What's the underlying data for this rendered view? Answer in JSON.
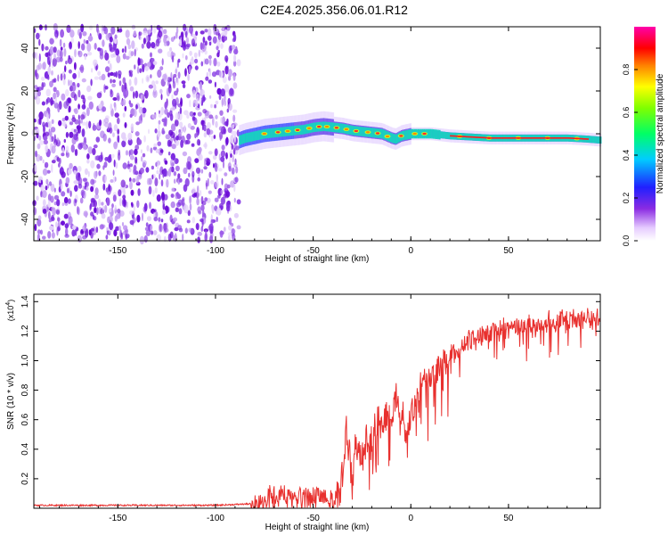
{
  "title": "C2E4.2025.356.06.01.R12",
  "spectrogram": {
    "type": "heatmap",
    "xlabel": "Height of straight line (km)",
    "ylabel": "Frequency (Hz)",
    "xlim": [
      -193,
      97
    ],
    "ylim": [
      -50,
      50
    ],
    "xticks": [
      -150,
      -100,
      -50,
      0,
      50
    ],
    "yticks": [
      -40,
      -20,
      0,
      20,
      40
    ],
    "noise_region_km": [
      -193,
      -88
    ],
    "ridge": {
      "x": [
        -88,
        -85,
        -80,
        -75,
        -70,
        -65,
        -60,
        -55,
        -50,
        -45,
        -40,
        -35,
        -30,
        -25,
        -20,
        -15,
        -10,
        -8,
        -5,
        0,
        5,
        10,
        20,
        30,
        40,
        50,
        60,
        70,
        80,
        90,
        97
      ],
      "y": [
        -3,
        -2,
        -1,
        0,
        0.5,
        1,
        1.5,
        2,
        3,
        3.5,
        3,
        2.5,
        1.5,
        1,
        0.5,
        0,
        -2,
        -2.5,
        -1,
        0,
        0,
        0,
        -1,
        -1.5,
        -2,
        -2,
        -2,
        -2,
        -2,
        -2.5,
        -3
      ]
    }
  },
  "colorbar": {
    "label": "Normalized spectral amplitude",
    "ticks": [
      "0.0",
      "0.2",
      "0.4",
      "0.6",
      "0.8"
    ],
    "range": [
      0,
      1
    ]
  },
  "chart_data": [
    {
      "type": "heatmap",
      "title": "C2E4.2025.356.06.01.R12",
      "xlabel": "Height of straight line (km)",
      "ylabel": "Frequency (Hz)",
      "xlim": [
        -193,
        97
      ],
      "ylim": [
        -50,
        50
      ],
      "colorbar_label": "Normalized spectral amplitude",
      "colorbar_range": [
        0,
        1
      ]
    },
    {
      "type": "line",
      "xlabel": "Height of straight line (km)",
      "ylabel": "SNR (10 * v/v)",
      "multiplier": "(x10^4)",
      "xlim": [
        -193,
        97
      ],
      "ylim": [
        0,
        1.45
      ],
      "color": "#e02020",
      "series": [
        {
          "name": "SNR",
          "x": [
            -193,
            -150,
            -100,
            -82,
            -80,
            -76,
            -70,
            -65,
            -60,
            -55,
            -50,
            -45,
            -40,
            -36,
            -33,
            -30,
            -28,
            -25,
            -22,
            -20,
            -18,
            -15,
            -12,
            -10,
            -8,
            -5,
            -2,
            0,
            2,
            5,
            10,
            15,
            20,
            25,
            30,
            35,
            40,
            50,
            60,
            70,
            80,
            90,
            97
          ],
          "y": [
            0.02,
            0.02,
            0.02,
            0.03,
            0.08,
            0.13,
            0.14,
            0.15,
            0.14,
            0.13,
            0.14,
            0.14,
            0.12,
            0.25,
            0.65,
            0.3,
            0.55,
            0.45,
            0.6,
            0.55,
            0.7,
            0.65,
            0.75,
            0.7,
            0.85,
            0.8,
            0.6,
            0.75,
            0.85,
            0.95,
            1.0,
            1.05,
            1.1,
            1.15,
            1.2,
            1.22,
            1.25,
            1.28,
            1.3,
            1.32,
            1.33,
            1.35,
            1.35
          ]
        }
      ]
    }
  ],
  "snr_plot": {
    "ylabel": "SNR (10 * v/v)",
    "multiplier_base": "(x10",
    "multiplier_exp": "4",
    "multiplier_close": ")",
    "xlabel": "Height of straight line (km)",
    "xticks": [
      -150,
      -100,
      -50,
      0,
      50
    ],
    "yticks": [
      0.2,
      0.4,
      0.6,
      0.8,
      1.0,
      1.2,
      1.4
    ],
    "ytick_labels": [
      "0.2",
      "0.4",
      "0.6",
      "0.8",
      "1.0",
      "1.2",
      "1.4"
    ]
  }
}
